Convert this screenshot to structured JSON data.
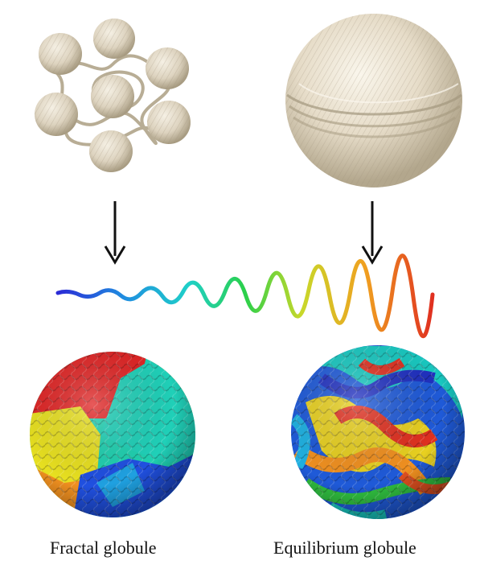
{
  "captions": {
    "left": "Fractal globule",
    "right": "Equilibrium globule"
  },
  "colors": {
    "twine": "#d9d0bc",
    "twine_shadow": "#b9ae96",
    "twine_light": "#efe9dc",
    "arrow": "#111111",
    "polymer_gradient": [
      "#2b2bd6",
      "#1f8fe0",
      "#1fd0c8",
      "#2bd04a",
      "#c8d82a",
      "#f0a020",
      "#e03020"
    ]
  },
  "icons": {
    "small_balls": "twine-ball-cluster-icon",
    "large_ball": "twine-ball-icon",
    "arrows": "down-arrow-icon",
    "chain": "polymer-chain-icon",
    "fractal": "fractal-globule-icon",
    "equilibrium": "equilibrium-globule-icon"
  }
}
